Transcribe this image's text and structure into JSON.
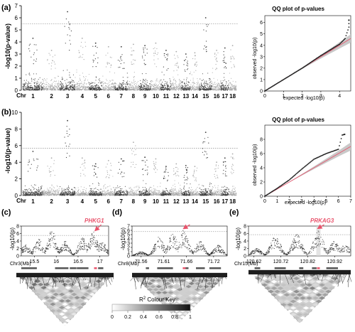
{
  "panels": {
    "a": {
      "label": "(a)"
    },
    "b": {
      "label": "(b)"
    },
    "c": {
      "label": "(c)"
    },
    "d": {
      "label": "(d)"
    },
    "e": {
      "label": "(e)"
    }
  },
  "colors": {
    "dark": "#3a3a3a",
    "light": "#a9a9a9",
    "highlight": "#e8536b",
    "threshold": "#777777"
  },
  "legend": {
    "title": "R",
    "title_sup": "2",
    "title_rest": " Colour Key",
    "ticks": [
      "0",
      "0.2",
      "0.4",
      "0.6",
      "0.8",
      "1"
    ]
  },
  "chart_data": [
    {
      "id": "manhattan-a",
      "type": "scatter",
      "ylabel": "-log10(p-value)",
      "xlabel": "Chr",
      "ylim": [
        0,
        7
      ],
      "yticks": [
        "0",
        "1",
        "2",
        "3",
        "4",
        "5",
        "6",
        "7"
      ],
      "threshold": 5.5,
      "chromosomes": [
        "1",
        "2",
        "3",
        "4",
        "5",
        "6",
        "7",
        "8",
        "9",
        "10",
        "11",
        "12",
        "13",
        "14",
        "15",
        "16",
        "17",
        "18"
      ],
      "chromosome_peaks": [
        4.3,
        3.3,
        6.5,
        4.3,
        3.9,
        3.6,
        3.6,
        3.8,
        3.7,
        3.9,
        3.3,
        3.2,
        3.0,
        3.1,
        6.0,
        3.3,
        3.5,
        3.7
      ]
    },
    {
      "id": "manhattan-b",
      "type": "scatter",
      "ylabel": "-log10(p-value)",
      "xlabel": "Chr",
      "ylim": [
        0,
        10
      ],
      "yticks": [
        "0",
        "2",
        "4",
        "6",
        "8",
        "10"
      ],
      "threshold": 5.7,
      "chromosomes": [
        "1",
        "2",
        "3",
        "4",
        "5",
        "6",
        "7",
        "8",
        "9",
        "10",
        "11",
        "12",
        "13",
        "14",
        "15",
        "16",
        "17",
        "18"
      ],
      "chromosome_peaks": [
        5.3,
        4.5,
        9.0,
        4.5,
        3.8,
        4.2,
        4.4,
        6.4,
        4.6,
        4.4,
        3.5,
        3.8,
        3.6,
        3.5,
        7.6,
        4.0,
        4.5,
        5.0
      ]
    },
    {
      "id": "qq-a",
      "type": "scatter",
      "title": "QQ plot of p-values",
      "xlabel": "expected -log10(p)",
      "ylabel": "observed -log10(p)",
      "xlim": [
        0,
        4.6
      ],
      "ylim": [
        0,
        6.6
      ],
      "xticks": [
        "0",
        "1",
        "2",
        "3",
        "4"
      ],
      "yticks": [
        "0",
        "1",
        "2",
        "3",
        "4",
        "5",
        "6"
      ],
      "points": [
        [
          0,
          0
        ],
        [
          1,
          1
        ],
        [
          2,
          2.0
        ],
        [
          3,
          3.1
        ],
        [
          3.5,
          3.6
        ],
        [
          4.0,
          4.1
        ],
        [
          4.3,
          4.6
        ],
        [
          4.5,
          5.6
        ],
        [
          4.5,
          6.2
        ]
      ]
    },
    {
      "id": "qq-b",
      "type": "scatter",
      "title": "QQ plot of p-values",
      "xlabel": "expected -log10(p)",
      "ylabel": "observed -log10(p)",
      "xlim": [
        0,
        7
      ],
      "ylim": [
        0,
        10
      ],
      "xticks": [
        "0",
        "1",
        "2",
        "3",
        "4",
        "5",
        "6",
        "7"
      ],
      "yticks": [
        "0",
        "2",
        "4",
        "6",
        "8"
      ],
      "points": [
        [
          0,
          0
        ],
        [
          1,
          1.1
        ],
        [
          2,
          2.3
        ],
        [
          3,
          3.8
        ],
        [
          4,
          5.2
        ],
        [
          5,
          6.0
        ],
        [
          6,
          6.6
        ],
        [
          6.3,
          8.6
        ],
        [
          6.5,
          8.7
        ]
      ]
    },
    {
      "id": "regional-c",
      "type": "scatter",
      "ylabel": "-log10(p)",
      "xlabel": "Chr3(Mb)",
      "xlim": [
        15.2,
        17.2
      ],
      "ylim": [
        0,
        8
      ],
      "xticks": [
        "15.5",
        "16",
        "16.5",
        "17"
      ],
      "yticks": [
        "0",
        "2",
        "4",
        "6",
        "8"
      ],
      "threshold": 5.5,
      "gene": "PHKG1",
      "gene_pos": 16.9,
      "peaks": [
        [
          15.3,
          3.0
        ],
        [
          15.6,
          4.5
        ],
        [
          15.9,
          6.8
        ],
        [
          16.2,
          4.0
        ],
        [
          16.6,
          5.0
        ],
        [
          16.85,
          6.5
        ],
        [
          17.05,
          4.0
        ]
      ]
    },
    {
      "id": "regional-d",
      "type": "scatter",
      "ylabel": "-log10(p)",
      "xlabel": "Chr8(Mb)",
      "xlim": [
        71.54,
        71.75
      ],
      "ylim": [
        0,
        7
      ],
      "xticks": [
        "71.56",
        "71.61",
        "71.66",
        "71.72"
      ],
      "yticks": [
        "0",
        "1",
        "2",
        "3",
        "4",
        "5",
        "6",
        "7"
      ],
      "threshold": 5.7,
      "gene": "",
      "gene_pos": 71.655,
      "peaks": [
        [
          71.56,
          1.0
        ],
        [
          71.6,
          4.5
        ],
        [
          71.63,
          5.3
        ],
        [
          71.655,
          6.1
        ],
        [
          71.69,
          3.5
        ],
        [
          71.73,
          2.5
        ]
      ]
    },
    {
      "id": "regional-e",
      "type": "scatter",
      "ylabel": "-log10(p)",
      "xlabel": "Chr15(Mb)",
      "xlim": [
        120.6,
        120.98
      ],
      "ylim": [
        0,
        8
      ],
      "xticks": [
        "120.62",
        "120.72",
        "120.82",
        "120.92"
      ],
      "yticks": [
        "0",
        "2",
        "4",
        "6",
        "8"
      ],
      "threshold": 5.7,
      "gene": "PRKAG3",
      "gene_pos": 120.86,
      "peaks": [
        [
          120.63,
          2.0
        ],
        [
          120.7,
          5.5
        ],
        [
          120.78,
          5.8
        ],
        [
          120.86,
          7.0
        ],
        [
          120.92,
          4.0
        ],
        [
          120.96,
          3.0
        ]
      ]
    }
  ]
}
